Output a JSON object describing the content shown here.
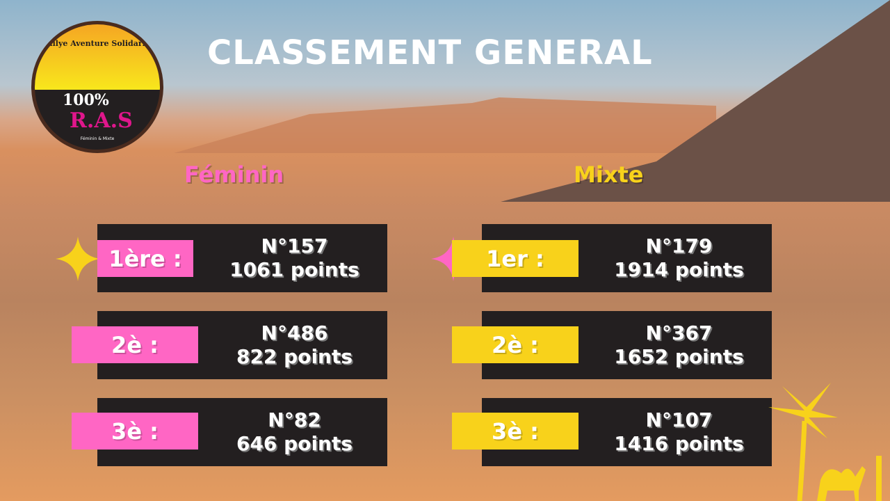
{
  "title": "CLASSEMENT GENERAL",
  "logo": {
    "top_text": "Rallye Aventure Solidarité",
    "percent": "100%",
    "brand": "R.A.S",
    "subtitle": "Féminin & Mixte"
  },
  "colors": {
    "pink": "#ff66c4",
    "yellow": "#f8d21b",
    "card": "#231f20"
  },
  "feminin": {
    "label": "Féminin",
    "ranks": [
      {
        "place": "1ère :",
        "number": "N°157",
        "points": "1061 points"
      },
      {
        "place": "2è :",
        "number": "N°486",
        "points": "822 points"
      },
      {
        "place": "3è :",
        "number": "N°82",
        "points": "646 points"
      }
    ]
  },
  "mixte": {
    "label": "Mixte",
    "ranks": [
      {
        "place": "1er :",
        "number": "N°179",
        "points": "1914 points"
      },
      {
        "place": "2è :",
        "number": "N°367",
        "points": "1652 points"
      },
      {
        "place": "3è :",
        "number": "N°107",
        "points": "1416 points"
      }
    ]
  }
}
